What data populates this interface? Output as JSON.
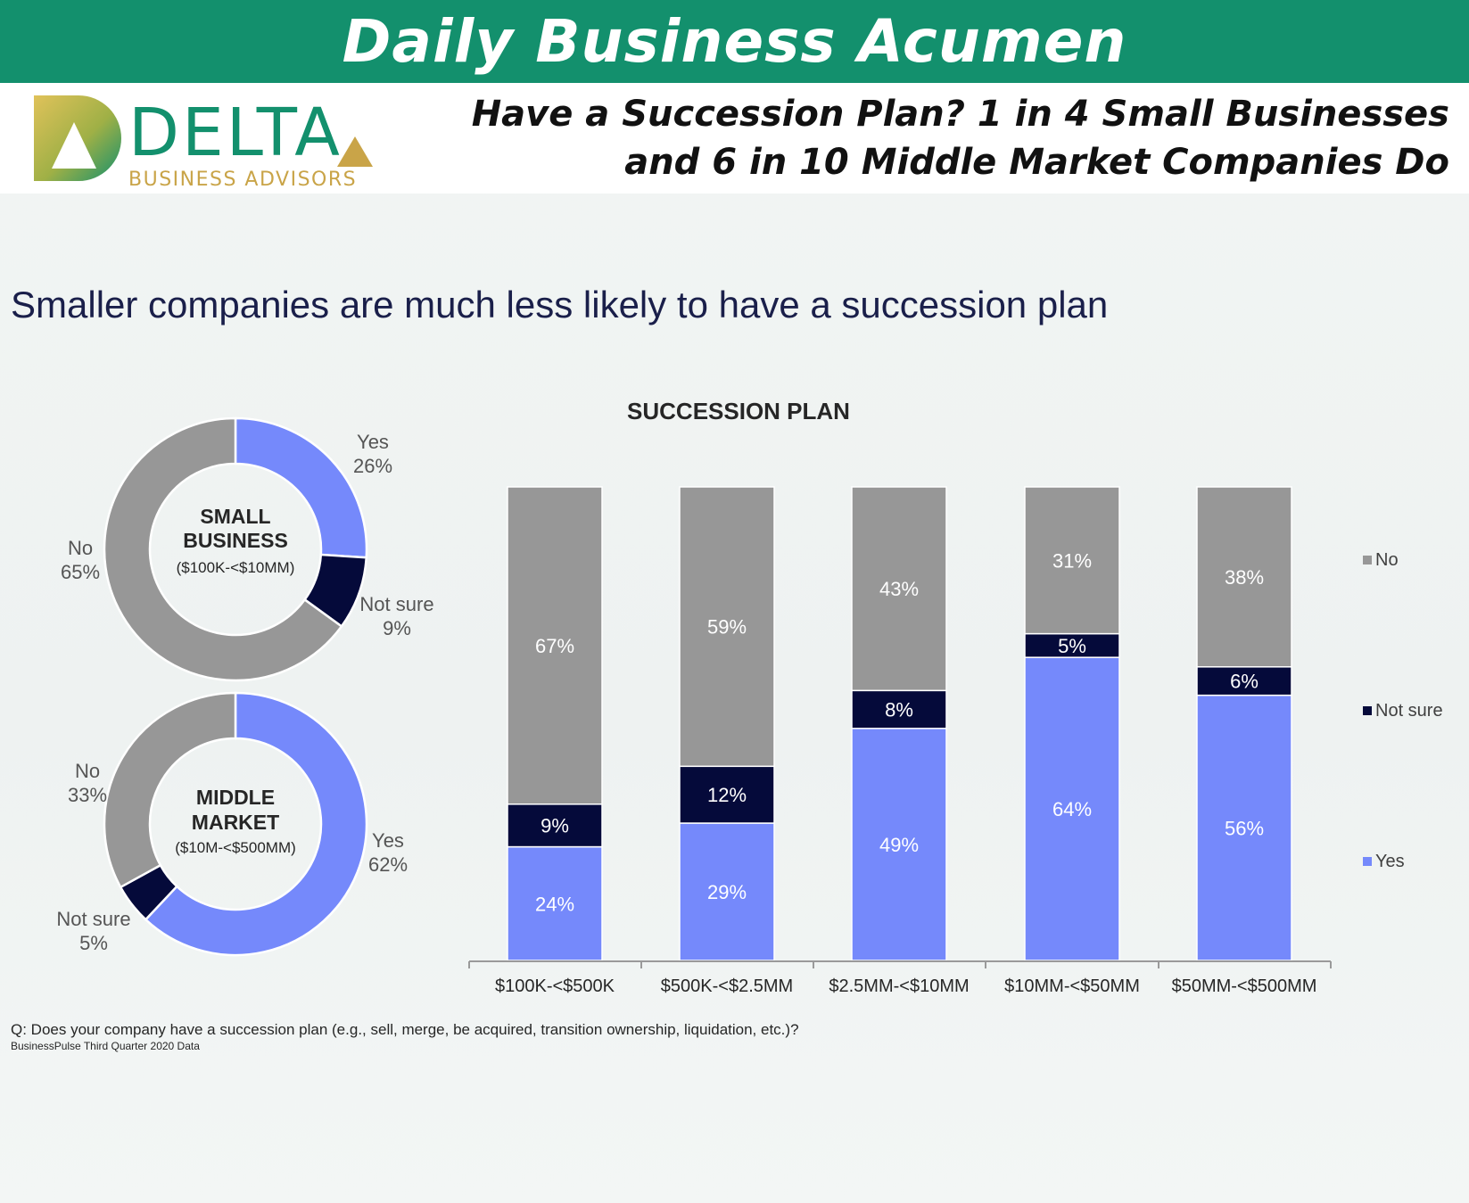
{
  "banner": {
    "title": "Daily Business Acumen"
  },
  "logo": {
    "word": "DELTA",
    "sub": "BUSINESS ADVISORS"
  },
  "headline": {
    "line1": "Have a Succession Plan? 1 in 4 Small Businesses",
    "line2": "and 6 in 10 Middle Market Companies Do"
  },
  "slide_title": "Smaller companies are much less likely to have a succession plan",
  "colors": {
    "yes": "#7589fb",
    "not_sure": "#050a3a",
    "no": "#979797",
    "brand": "#13906d",
    "gold": "#c9a448"
  },
  "chart_data": [
    {
      "type": "pie",
      "variant": "donut",
      "center_label": [
        "SMALL",
        "BUSINESS"
      ],
      "center_sublabel": "($100K-<$10MM)",
      "slices": [
        {
          "label": "Yes",
          "value": 26,
          "display": "26%"
        },
        {
          "label": "Not sure",
          "value": 9,
          "display": "9%"
        },
        {
          "label": "No",
          "value": 65,
          "display": "65%"
        }
      ]
    },
    {
      "type": "pie",
      "variant": "donut",
      "center_label": [
        "MIDDLE",
        "MARKET"
      ],
      "center_sublabel": "($10M-<$500MM)",
      "slices": [
        {
          "label": "Yes",
          "value": 62,
          "display": "62%"
        },
        {
          "label": "Not sure",
          "value": 5,
          "display": "5%"
        },
        {
          "label": "No",
          "value": 33,
          "display": "33%"
        }
      ]
    },
    {
      "type": "bar",
      "stacked": true,
      "percent_stacked": true,
      "title": "SUCCESSION PLAN",
      "categories": [
        "$100K-<$500K",
        "$500K-<$2.5MM",
        "$2.5MM-<$10MM",
        "$10MM-<$50MM",
        "$50MM-<$500MM"
      ],
      "series": [
        {
          "name": "Yes",
          "values": [
            24,
            29,
            49,
            64,
            56
          ]
        },
        {
          "name": "Not sure",
          "values": [
            9,
            12,
            8,
            5,
            6
          ]
        },
        {
          "name": "No",
          "values": [
            67,
            59,
            43,
            31,
            38
          ]
        }
      ],
      "legend": [
        "No",
        "Not sure",
        "Yes"
      ],
      "legend_position": "right",
      "grid": false
    }
  ],
  "footnote": "Q: Does your company have a succession plan (e.g., sell, merge, be acquired, transition ownership, liquidation, etc.)?",
  "source": "BusinessPulse Third Quarter 2020 Data"
}
